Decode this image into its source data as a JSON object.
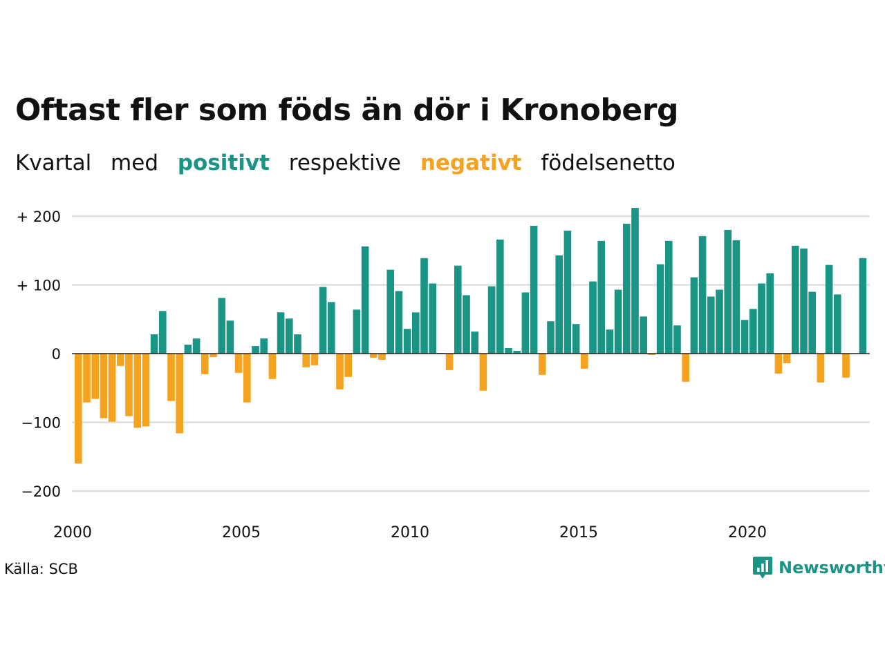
{
  "header": {
    "title": "Oftast fler som föds än dör i Kronoberg",
    "subtitle": {
      "w1": "Kvartal",
      "w2": "med",
      "positive": "positivt",
      "w3": "respektive",
      "negative": "negativt",
      "w4": "födelsenetto"
    }
  },
  "colors": {
    "positive": "#1a9485",
    "negative": "#f5a21e",
    "grid": "#dddddd",
    "axis": "#222222"
  },
  "footer": {
    "source": "Källa: SCB",
    "logo_text": "Newsworthy",
    "logo_icon": "bar-chart-icon"
  },
  "chart_data": {
    "type": "bar",
    "x_start": "2000 Q1",
    "x_tick_labels": [
      "2000",
      "2005",
      "2010",
      "2015",
      "2020"
    ],
    "y_tick_labels": [
      "+ 200",
      "+ 100",
      "0",
      "−100",
      "−200"
    ],
    "y_ticks": [
      200,
      100,
      0,
      -100,
      -200
    ],
    "ylim": [
      -230,
      220
    ],
    "grid": true,
    "values": [
      -160,
      -71,
      -66,
      -94,
      -99,
      -18,
      -91,
      -108,
      -106,
      28,
      62,
      -69,
      -116,
      13,
      22,
      -30,
      -5,
      81,
      48,
      -28,
      -71,
      11,
      22,
      -37,
      60,
      51,
      28,
      -20,
      -17,
      97,
      75,
      -52,
      -34,
      64,
      156,
      -6,
      -9,
      122,
      91,
      36,
      60,
      139,
      102,
      1,
      -24,
      128,
      85,
      32,
      -54,
      98,
      166,
      8,
      4,
      89,
      186,
      -31,
      47,
      143,
      179,
      43,
      -22,
      105,
      164,
      35,
      93,
      189,
      212,
      54,
      -2,
      130,
      164,
      41,
      -41,
      111,
      171,
      83,
      93,
      180,
      165,
      49,
      65,
      102,
      117,
      -29,
      -14,
      157,
      153,
      90,
      -42,
      129,
      86,
      -35,
      0,
      139
    ]
  }
}
